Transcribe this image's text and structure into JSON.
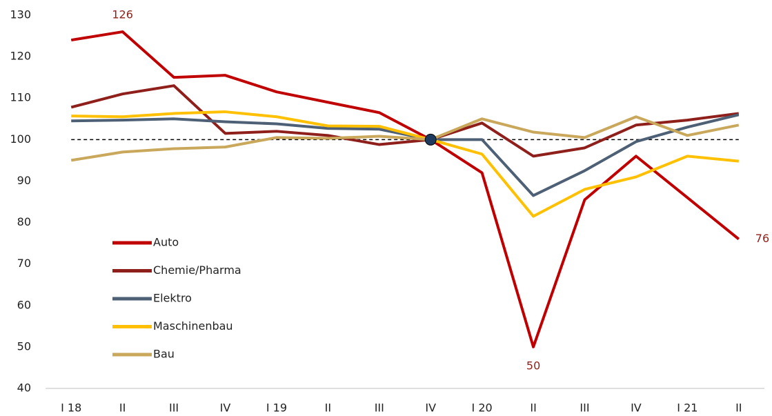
{
  "chart_data": {
    "type": "line",
    "categories": [
      "I 18",
      "II",
      "III",
      "IV",
      "I 19",
      "II",
      "III",
      "IV",
      "I 20",
      "II",
      "III",
      "IV",
      "I 21",
      "II"
    ],
    "series": [
      {
        "name": "Auto",
        "color": "#c00000",
        "values": [
          124,
          126,
          115,
          115.5,
          111.5,
          109,
          106.5,
          100,
          92,
          50,
          85.5,
          96,
          86,
          76
        ],
        "value_labels": [
          null,
          "126",
          null,
          null,
          null,
          null,
          null,
          null,
          null,
          "50",
          null,
          null,
          null,
          "76"
        ]
      },
      {
        "name": "Chemie/Pharma",
        "color": "#8e1f1a",
        "values": [
          107.8,
          111,
          113,
          101.5,
          102,
          101,
          98.8,
          100,
          104,
          96,
          98,
          103.5,
          104.7,
          106.3
        ]
      },
      {
        "name": "Elektro",
        "color": "#4d6075",
        "values": [
          104.5,
          104.7,
          105,
          104.3,
          103.8,
          102.7,
          102.5,
          100,
          100,
          86.5,
          92.5,
          99.5,
          103,
          106
        ]
      },
      {
        "name": "Maschinenbau",
        "color": "#ffc000",
        "values": [
          105.7,
          105.5,
          106.3,
          106.7,
          105.5,
          103.3,
          103.2,
          100,
          96.5,
          81.5,
          88,
          91,
          96,
          94.8
        ]
      },
      {
        "name": "Bau",
        "color": "#c9a85c",
        "values": [
          95,
          97,
          97.8,
          98.2,
          100.5,
          100.3,
          100.8,
          100,
          105,
          101.8,
          100.5,
          105.5,
          101,
          103.5
        ]
      }
    ],
    "ylim": [
      40,
      130
    ],
    "yticks": [
      40,
      50,
      60,
      70,
      80,
      90,
      100,
      110,
      120,
      130
    ],
    "reference_line": 100,
    "highlight": {
      "index": 7,
      "value": 100
    },
    "legend": "left"
  }
}
